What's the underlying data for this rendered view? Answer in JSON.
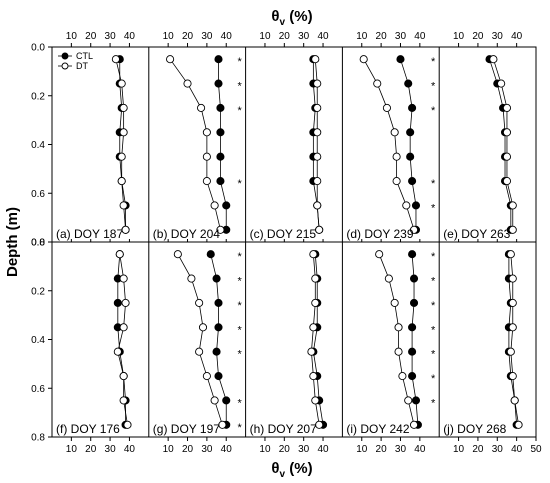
{
  "chart_data": {
    "type": "scatter",
    "x_axis_title_top": {
      "main": "θ",
      "sub": "v",
      "unit": " (%)"
    },
    "x_axis_title_bottom": {
      "main": "θ",
      "sub": "v",
      "unit": " (%)"
    },
    "y_axis_title": "Depth (m)",
    "xlim": [
      0,
      50
    ],
    "x_ticks_top": [
      "10",
      "20",
      "30",
      "40",
      "10",
      "20",
      "30",
      "40",
      "10",
      "20",
      "30",
      "40",
      "10",
      "20",
      "30",
      "40",
      "10",
      "20",
      "30",
      "40"
    ],
    "x_ticks_bottom": [
      "10",
      "20",
      "30",
      "40",
      "10",
      "20",
      "30",
      "40",
      "10",
      "20",
      "30",
      "40",
      "10",
      "20",
      "30",
      "40",
      "10",
      "20",
      "30",
      "40",
      "50"
    ],
    "ylim": [
      0.8,
      0.0
    ],
    "y_ticks_top_row": [
      "0.0",
      "0.2",
      "0.4",
      "0.6",
      "0.8"
    ],
    "y_ticks_bottom_row": [
      "0.0",
      "0.2",
      "0.4",
      "0.6",
      "0.8"
    ],
    "legend": [
      {
        "name": "CTL",
        "marker": "filled-circle",
        "color": "#000000"
      },
      {
        "name": "DT",
        "marker": "open-circle",
        "color": "#000000"
      }
    ],
    "panels": [
      {
        "label": "(a)",
        "title": "DOY 187",
        "depth": [
          0.05,
          0.15,
          0.25,
          0.35,
          0.45,
          0.55,
          0.65,
          0.75
        ],
        "series": [
          {
            "name": "CTL",
            "values": [
              35,
              35,
              36,
              35,
              35,
              36,
              38,
              38
            ]
          },
          {
            "name": "DT",
            "values": [
              33,
              36,
              37,
              37,
              36,
              36,
              37,
              38
            ]
          }
        ],
        "stars": []
      },
      {
        "label": "(b)",
        "title": "DOY 204",
        "depth": [
          0.05,
          0.15,
          0.25,
          0.35,
          0.45,
          0.55,
          0.65,
          0.75
        ],
        "series": [
          {
            "name": "CTL",
            "values": [
              36,
              36,
              37,
              37,
              37,
              37,
              40,
              40
            ]
          },
          {
            "name": "DT",
            "values": [
              11,
              20,
              27,
              30,
              30,
              30,
              34,
              37
            ]
          }
        ],
        "stars": [
          0.05,
          0.15,
          0.25,
          0.55
        ]
      },
      {
        "label": "(c)",
        "title": "DOY 215",
        "depth": [
          0.05,
          0.15,
          0.25,
          0.35,
          0.45,
          0.55,
          0.65,
          0.75
        ],
        "series": [
          {
            "name": "CTL",
            "values": [
              35,
              35,
              36,
              35,
              35,
              35,
              37,
              38
            ]
          },
          {
            "name": "DT",
            "values": [
              36,
              37,
              37,
              37,
              37,
              37,
              37,
              38
            ]
          }
        ],
        "stars": []
      },
      {
        "label": "(d)",
        "title": "DOY 239",
        "depth": [
          0.05,
          0.15,
          0.25,
          0.35,
          0.45,
          0.55,
          0.65,
          0.75
        ],
        "series": [
          {
            "name": "CTL",
            "values": [
              30,
              34,
              36,
              35,
              35,
              36,
              38,
              38
            ]
          },
          {
            "name": "DT",
            "values": [
              11,
              18,
              23,
              27,
              28,
              28,
              33,
              37
            ]
          }
        ],
        "stars": [
          0.05,
          0.15,
          0.25,
          0.55,
          0.65
        ]
      },
      {
        "label": "(e)",
        "title": "DOY 263",
        "depth": [
          0.05,
          0.15,
          0.25,
          0.35,
          0.45,
          0.55,
          0.65,
          0.75
        ],
        "series": [
          {
            "name": "CTL",
            "values": [
              26,
              30,
              33,
              34,
              34,
              34,
              37,
              37
            ]
          },
          {
            "name": "DT",
            "values": [
              28,
              32,
              35,
              35,
              35,
              35,
              38,
              38
            ]
          }
        ],
        "stars": []
      },
      {
        "label": "(f)",
        "title": "DOY 176",
        "depth": [
          0.05,
          0.15,
          0.25,
          0.35,
          0.45,
          0.55,
          0.65,
          0.75
        ],
        "series": [
          {
            "name": "CTL",
            "values": [
              35,
              34,
              34,
              34,
              35,
              37,
              38,
              38
            ]
          },
          {
            "name": "DT",
            "values": [
              35,
              37,
              38,
              37,
              34,
              37,
              37,
              39
            ]
          }
        ],
        "stars": []
      },
      {
        "label": "(g)",
        "title": "DOY 197",
        "depth": [
          0.05,
          0.15,
          0.25,
          0.35,
          0.45,
          0.55,
          0.65,
          0.75
        ],
        "series": [
          {
            "name": "CTL",
            "values": [
              32,
              35,
              36,
              36,
              35,
              36,
              40,
              40
            ]
          },
          {
            "name": "DT",
            "values": [
              15,
              22,
              26,
              28,
              26,
              30,
              34,
              38
            ]
          }
        ],
        "stars": [
          0.05,
          0.15,
          0.25,
          0.35,
          0.45,
          0.65,
          0.75
        ]
      },
      {
        "label": "(h)",
        "title": "DOY 207",
        "depth": [
          0.05,
          0.15,
          0.25,
          0.35,
          0.45,
          0.55,
          0.65,
          0.75
        ],
        "series": [
          {
            "name": "CTL",
            "values": [
              36,
              37,
              37,
              37,
              35,
              37,
              38,
              40
            ]
          },
          {
            "name": "DT",
            "values": [
              35,
              36,
              36,
              35,
              34,
              35,
              36,
              38
            ]
          }
        ],
        "stars": []
      },
      {
        "label": "(i)",
        "title": "DOY 242",
        "depth": [
          0.05,
          0.15,
          0.25,
          0.35,
          0.45,
          0.55,
          0.65,
          0.75
        ],
        "series": [
          {
            "name": "CTL",
            "values": [
              36,
              37,
              37,
              36,
              36,
              36,
              38,
              39
            ]
          },
          {
            "name": "DT",
            "values": [
              19,
              24,
              27,
              29,
              29,
              31,
              34,
              37
            ]
          }
        ],
        "stars": [
          0.05,
          0.15,
          0.25,
          0.35,
          0.45,
          0.55,
          0.65
        ]
      },
      {
        "label": "(j)",
        "title": "DOY 268",
        "depth": [
          0.05,
          0.15,
          0.25,
          0.35,
          0.45,
          0.55,
          0.65,
          0.75
        ],
        "series": [
          {
            "name": "CTL",
            "values": [
              36,
              36,
              37,
              36,
              36,
              37,
              39,
              40
            ]
          },
          {
            "name": "DT",
            "values": [
              37,
              38,
              38,
              38,
              37,
              38,
              39,
              41
            ]
          }
        ],
        "stars": []
      }
    ]
  }
}
